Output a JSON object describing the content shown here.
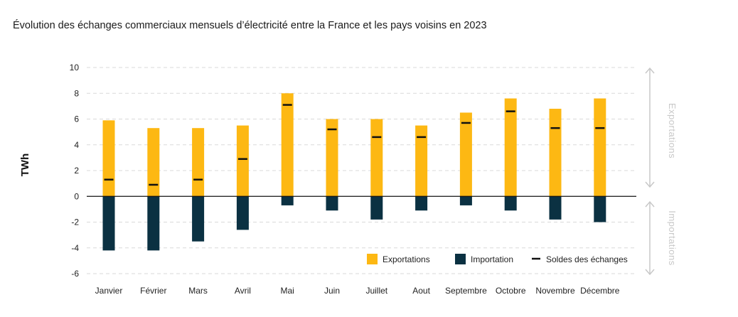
{
  "chart_data": {
    "type": "bar",
    "title": "Évolution des échanges commerciaux mensuels d’électricité entre la France et les pays voisins en 2023",
    "ylabel": "TWh",
    "ylim": [
      -6,
      10
    ],
    "yticks": [
      10,
      8,
      6,
      4,
      2,
      0,
      -2,
      -4,
      -6
    ],
    "grid": true,
    "legend_position": "bottom-right",
    "categories": [
      "Janvier",
      "Février",
      "Mars",
      "Avril",
      "Mai",
      "Juin",
      "Juillet",
      "Aout",
      "Septembre",
      "Octobre",
      "Novembre",
      "Décembre"
    ],
    "series": [
      {
        "name": "Exportations",
        "type": "bar",
        "color": "#FDB813",
        "values": [
          5.9,
          5.3,
          5.3,
          5.5,
          8.0,
          6.0,
          6.0,
          5.5,
          6.5,
          7.6,
          6.8,
          7.6
        ]
      },
      {
        "name": "Importation",
        "type": "bar",
        "color": "#0B3142",
        "values": [
          -4.2,
          -4.2,
          -3.5,
          -2.6,
          -0.7,
          -1.1,
          -1.8,
          -1.1,
          -0.7,
          -1.1,
          -1.8,
          -2.0
        ]
      },
      {
        "name": "Soldes des échanges",
        "type": "marker",
        "color": "#111111",
        "values": [
          1.3,
          0.9,
          1.3,
          2.9,
          7.1,
          5.2,
          4.6,
          4.6,
          5.7,
          6.6,
          5.3,
          5.3
        ]
      }
    ],
    "side_labels": {
      "top": "Exportations",
      "bottom": "Importations"
    }
  }
}
